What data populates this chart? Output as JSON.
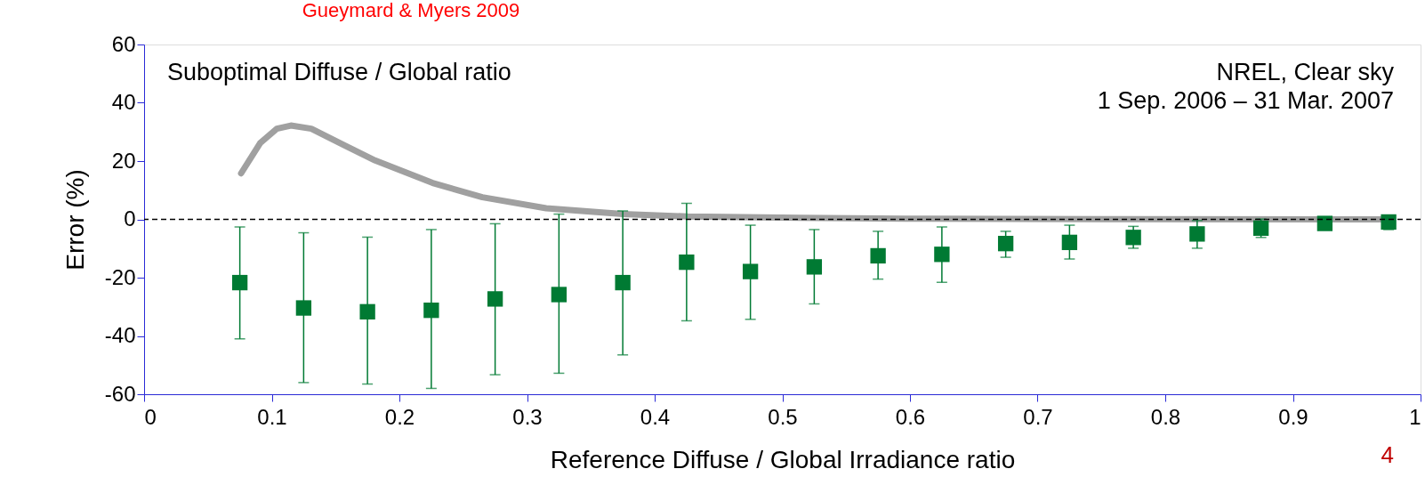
{
  "chart_data": {
    "type": "scatter",
    "xlabel": "Reference Diffuse / Global Irradiance ratio",
    "ylabel": "Error (%)",
    "annotations": [
      "Suboptimal Diffuse / Global ratio",
      "NREL, Clear sky",
      "1 Sep. 2006 – 31 Mar. 2007",
      "Gueymard & Myers 2009",
      "4"
    ],
    "xlim": [
      0,
      1
    ],
    "ylim": [
      -60,
      60
    ],
    "xticks": [
      0,
      0.1,
      0.2,
      0.3,
      0.4,
      0.5,
      0.6,
      0.7,
      0.8,
      0.9,
      1
    ],
    "yticks": [
      -60,
      -40,
      -20,
      0,
      20,
      40,
      60
    ],
    "grid": false,
    "ref_lines": [
      {
        "axis": "y",
        "value": 0,
        "color": "#000000",
        "line_style": "dashed"
      }
    ],
    "series": [
      {
        "type": "line",
        "color": "#a0a0a0",
        "line_style": "solid",
        "marker": "none",
        "x": [
          0.076,
          0.091,
          0.104,
          0.115,
          0.131,
          0.156,
          0.181,
          0.226,
          0.265,
          0.315,
          0.375,
          0.426,
          0.514,
          0.614,
          0.75,
          0.975
        ],
        "values": [
          15.8,
          26.2,
          31.1,
          32.2,
          31.1,
          25.6,
          20.2,
          12.5,
          7.6,
          3.8,
          1.8,
          1.0,
          0.5,
          0.2,
          0.1,
          0
        ]
      },
      {
        "color": "#007a33",
        "marker": "square",
        "x": [
          0.075,
          0.125,
          0.175,
          0.225,
          0.275,
          0.325,
          0.375,
          0.425,
          0.475,
          0.525,
          0.575,
          0.625,
          0.675,
          0.725,
          0.775,
          0.825,
          0.875,
          0.925,
          0.975
        ],
        "values": [
          -21.7,
          -30.4,
          -31.7,
          -31.2,
          -27.3,
          -25.8,
          -21.7,
          -14.7,
          -17.9,
          -16.3,
          -12.5,
          -12,
          -8.3,
          -7.9,
          -6.2,
          -5,
          -3,
          -1.4,
          -0.9
        ],
        "errors": [
          [
            -41,
            -2.6
          ],
          [
            -56,
            -4.6
          ],
          [
            -56.5,
            -6.1
          ],
          [
            -58,
            -3.5
          ],
          [
            -53.3,
            -1.5
          ],
          [
            -52.8,
            1.8
          ],
          [
            -46.5,
            2.9
          ],
          [
            -34.8,
            5.5
          ],
          [
            -34.3,
            -2
          ],
          [
            -29,
            -3.5
          ],
          [
            -20.5,
            -4.1
          ],
          [
            -21.6,
            -2.6
          ],
          [
            -13,
            -4.1
          ],
          [
            -13.6,
            -2
          ],
          [
            -9.9,
            -2.4
          ],
          [
            -9.9,
            -0.4
          ],
          [
            -6.2,
            0.1
          ],
          null,
          [
            -3.5,
            0
          ]
        ]
      }
    ]
  }
}
